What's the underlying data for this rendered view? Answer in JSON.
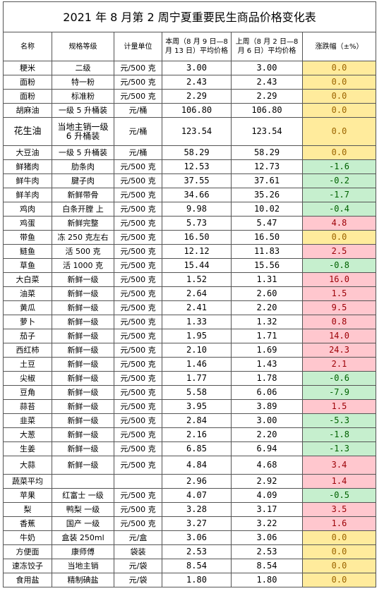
{
  "table": {
    "title": "2021 年 8 月第 2 周宁夏重要民生商品价格变化表",
    "columns": [
      "名称",
      "规格等级",
      "计量单位",
      "本周（8 月 9 日—8 月 13 日）平均价格",
      "上周（8 月 2 日—8 月 6 日）平均价格",
      "涨跌幅（±%）"
    ],
    "rows": [
      [
        "粳米",
        "二级",
        "元/500 克",
        "3.00",
        "3.00",
        "0.0"
      ],
      [
        "面粉",
        "特一粉",
        "元/500 克",
        "2.43",
        "2.43",
        "0.0"
      ],
      [
        "面粉",
        "标准粉",
        "元/500 克",
        "2.29",
        "2.29",
        "0.0"
      ],
      [
        "胡麻油",
        "一级 5 升桶装",
        "元/桶",
        "106.80",
        "106.80",
        "0.0"
      ],
      [
        "花生油",
        "当地主销一级 6 升桶装",
        "元/桶",
        "123.54",
        "123.54",
        "0.0"
      ],
      [
        "大豆油",
        "一级 5 升桶装",
        "元/桶",
        "58.29",
        "58.29",
        "0.0"
      ],
      [
        "鲜猪肉",
        "肋条肉",
        "元/500 克",
        "12.53",
        "12.73",
        "-1.6"
      ],
      [
        "鲜牛肉",
        "腱子肉",
        "元/500 克",
        "37.55",
        "37.61",
        "-0.2"
      ],
      [
        "鲜羊肉",
        "新鲜带骨",
        "元/500 克",
        "34.66",
        "35.26",
        "-1.7"
      ],
      [
        "鸡肉",
        "白条开膛 上",
        "元/500 克",
        "9.98",
        "10.02",
        "-0.4"
      ],
      [
        "鸡蛋",
        "新鲜完整",
        "元/500 克",
        "5.73",
        "5.47",
        "4.8"
      ],
      [
        "带鱼",
        "冻 250 克左右",
        "元/500 克",
        "16.50",
        "16.50",
        "0.0"
      ],
      [
        "鲢鱼",
        "活 500 克",
        "元/500 克",
        "12.12",
        "11.83",
        "2.5"
      ],
      [
        "草鱼",
        "活 1000 克",
        "元/500 克",
        "15.44",
        "15.56",
        "-0.8"
      ],
      [
        "大白菜",
        "新鲜一级",
        "元/500 克",
        "1.52",
        "1.31",
        "16.0"
      ],
      [
        "油菜",
        "新鲜一级",
        "元/500 克",
        "2.64",
        "2.60",
        "1.5"
      ],
      [
        "黄瓜",
        "新鲜一级",
        "元/500 克",
        "2.41",
        "2.20",
        "9.5"
      ],
      [
        "萝卜",
        "新鲜一级",
        "元/500 克",
        "1.33",
        "1.32",
        "0.8"
      ],
      [
        "茄子",
        "新鲜一级",
        "元/500 克",
        "1.95",
        "1.71",
        "14.0"
      ],
      [
        "西红柿",
        "新鲜一级",
        "元/500 克",
        "2.10",
        "1.69",
        "24.3"
      ],
      [
        "土豆",
        "新鲜一级",
        "元/500 克",
        "1.46",
        "1.43",
        "2.1"
      ],
      [
        "尖椒",
        "新鲜一级",
        "元/500 克",
        "1.77",
        "1.78",
        "-0.6"
      ],
      [
        "豆角",
        "新鲜一级",
        "元/500 克",
        "5.58",
        "6.06",
        "-7.9"
      ],
      [
        "蒜苔",
        "新鲜一级",
        "元/500 克",
        "3.95",
        "3.89",
        "1.5"
      ],
      [
        "韭菜",
        "新鲜一级",
        "元/500 克",
        "2.84",
        "3.00",
        "-5.3"
      ],
      [
        "大葱",
        "新鲜一级",
        "元/500 克",
        "2.16",
        "2.20",
        "-1.8"
      ],
      [
        "生姜",
        "新鲜一级",
        "元/500 克",
        "6.85",
        "6.94",
        "-1.3"
      ],
      [
        "大蒜",
        "新鲜一级",
        "元/500 克",
        "4.84",
        "4.68",
        "3.4"
      ],
      [
        "蔬菜平均",
        null,
        null,
        "2.96",
        "2.92",
        "1.4"
      ],
      [
        "苹果",
        "红富士 一级",
        "元/500 克",
        "4.07",
        "4.09",
        "-0.5"
      ],
      [
        "梨",
        "鸭梨 一级",
        "元/500 克",
        "3.28",
        "3.17",
        "3.5"
      ],
      [
        "香蕉",
        "国产 一级",
        "元/500 克",
        "3.27",
        "3.22",
        "1.6"
      ],
      [
        "牛奶",
        "盒装 250ml",
        "元/盒",
        "3.06",
        "3.06",
        "0.0"
      ],
      [
        "方便面",
        "康师傅",
        "袋装",
        "2.53",
        "2.53",
        "0.0"
      ],
      [
        "速冻饺子",
        "当地主销",
        "元/袋",
        "8.54",
        "8.54",
        "0.0"
      ],
      [
        "食用盐",
        "精制碘盐",
        "元/袋",
        "1.80",
        "1.80",
        "0.0"
      ]
    ]
  }
}
